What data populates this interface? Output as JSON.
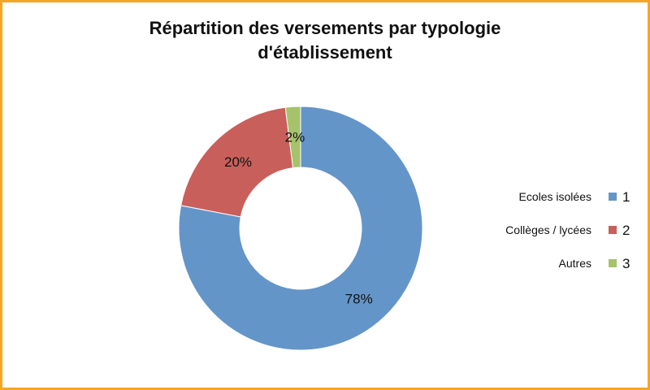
{
  "title_lines": [
    "Répartition des versements par typologie",
    "d'établissement"
  ],
  "colors": {
    "frame": "#f5a623",
    "series": [
      "#6495c8",
      "#c95f5b",
      "#a6c26b"
    ]
  },
  "chart_data": {
    "type": "pie",
    "variant": "donut",
    "title": "Répartition des versements par typologie d'établissement",
    "categories": [
      "1",
      "2",
      "3"
    ],
    "values": [
      78,
      20,
      2
    ],
    "data_labels": [
      "78%",
      "20%",
      "2%"
    ],
    "legend": {
      "position": "right",
      "entries": [
        {
          "text": "Ecoles isolées",
          "key": "1"
        },
        {
          "text": "Collèges / lycées",
          "key": "2"
        },
        {
          "text": "Autres",
          "key": "3"
        }
      ]
    }
  }
}
